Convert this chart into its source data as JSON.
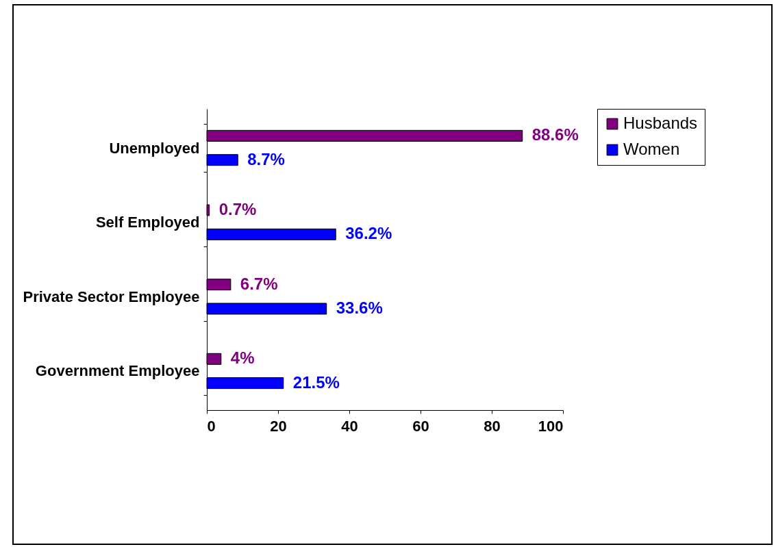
{
  "chart_data": {
    "type": "bar",
    "orientation": "horizontal",
    "categories": [
      "Unemployed",
      "Self Employed",
      "Private Sector Employee",
      "Government Employee"
    ],
    "series": [
      {
        "name": "Husbands",
        "color": "#800080",
        "values": [
          88.6,
          0.7,
          6.7,
          4
        ],
        "value_labels": [
          "88.6%",
          "0.7%",
          "6.7%",
          "4%"
        ]
      },
      {
        "name": "Women",
        "color": "#0000ff",
        "values": [
          8.7,
          36.2,
          33.6,
          21.5
        ],
        "value_labels": [
          "8.7%",
          "36.2%",
          "33.6%",
          "21.5%"
        ]
      }
    ],
    "xlim": [
      0,
      100
    ],
    "xticks": [
      0,
      20,
      40,
      60,
      80,
      100
    ],
    "grid": false,
    "legend": "right"
  }
}
